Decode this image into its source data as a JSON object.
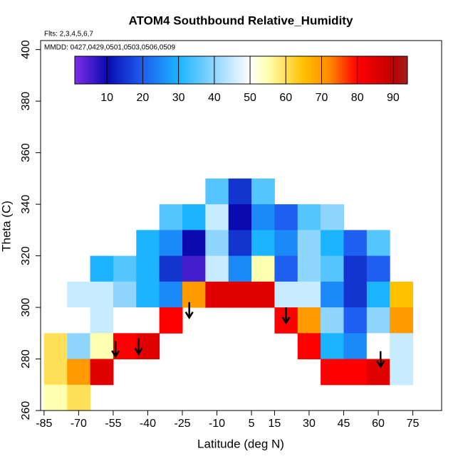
{
  "chart_data": {
    "type": "heatmap",
    "title": "ATOM4 Southbound Relative_Humidity",
    "subtitle": "Flts: 2,3,4,5,6,7",
    "note": "MMDD: 0427,0429,0501,0503,0506,0509",
    "x_label": "Latitude (deg N)",
    "y_label": "Theta (C)",
    "xlim": [
      -86.5,
      87.5
    ],
    "ylim": [
      260,
      403.5
    ],
    "xticks": [
      -85,
      -70,
      -55,
      -40,
      -25,
      -10,
      5,
      15,
      30,
      45,
      60,
      75
    ],
    "yticks": [
      260,
      280,
      300,
      320,
      340,
      360,
      380,
      400
    ],
    "x": [
      -80,
      -70,
      -60,
      -50,
      -40,
      -30,
      -20,
      -10,
      0,
      10,
      20,
      30,
      40,
      50,
      60,
      70
    ],
    "y": [
      345,
      335,
      325,
      315,
      305,
      295,
      285,
      275,
      265
    ],
    "cell_size": [
      10,
      10
    ],
    "z": [
      [
        null,
        null,
        null,
        null,
        null,
        null,
        null,
        35,
        15,
        35,
        null,
        null,
        null,
        null,
        null,
        null
      ],
      [
        null,
        null,
        null,
        null,
        null,
        35,
        30,
        45,
        10,
        25,
        20,
        35,
        40,
        null,
        null,
        null
      ],
      [
        null,
        null,
        null,
        null,
        30,
        25,
        10,
        40,
        15,
        30,
        25,
        40,
        30,
        20,
        35,
        null
      ],
      [
        null,
        null,
        30,
        35,
        30,
        15,
        5,
        45,
        25,
        55,
        20,
        40,
        35,
        15,
        20,
        null
      ],
      [
        null,
        45,
        45,
        40,
        30,
        25,
        70,
        85,
        85,
        85,
        45,
        45,
        25,
        15,
        30,
        65
      ],
      [
        null,
        50,
        45,
        50,
        50,
        80,
        null,
        null,
        null,
        null,
        80,
        70,
        40,
        20,
        40,
        70
      ],
      [
        60,
        40,
        55,
        80,
        85,
        null,
        null,
        null,
        null,
        null,
        null,
        80,
        30,
        25,
        50,
        45
      ],
      [
        60,
        70,
        85,
        null,
        null,
        null,
        null,
        null,
        null,
        null,
        null,
        null,
        80,
        80,
        85,
        45
      ],
      [
        55,
        60,
        null,
        null,
        null,
        null,
        null,
        null,
        null,
        null,
        null,
        null,
        null,
        null,
        null,
        null
      ]
    ],
    "colorbar_lim": [
      1,
      94
    ],
    "colorbar_ticks": [
      10,
      20,
      30,
      40,
      50,
      60,
      70,
      80,
      90
    ],
    "colorscale": [
      [
        0,
        "#7f2fe6"
      ],
      [
        10,
        "#0a0ab0"
      ],
      [
        20,
        "#1e5ef0"
      ],
      [
        30,
        "#1ab4ff"
      ],
      [
        40,
        "#8fd6ff"
      ],
      [
        50,
        "#ffffff"
      ],
      [
        55,
        "#ffffb0"
      ],
      [
        65,
        "#ffc000"
      ],
      [
        72,
        "#ff8c00"
      ],
      [
        80,
        "#ff0000"
      ],
      [
        90,
        "#c00000"
      ],
      [
        95,
        "#a02020"
      ]
    ],
    "arrows": [
      [
        -54,
        287,
        281
      ],
      [
        -44,
        288,
        282
      ],
      [
        -22,
        302,
        296
      ],
      [
        20,
        300,
        294
      ],
      [
        61,
        283,
        277
      ]
    ]
  }
}
